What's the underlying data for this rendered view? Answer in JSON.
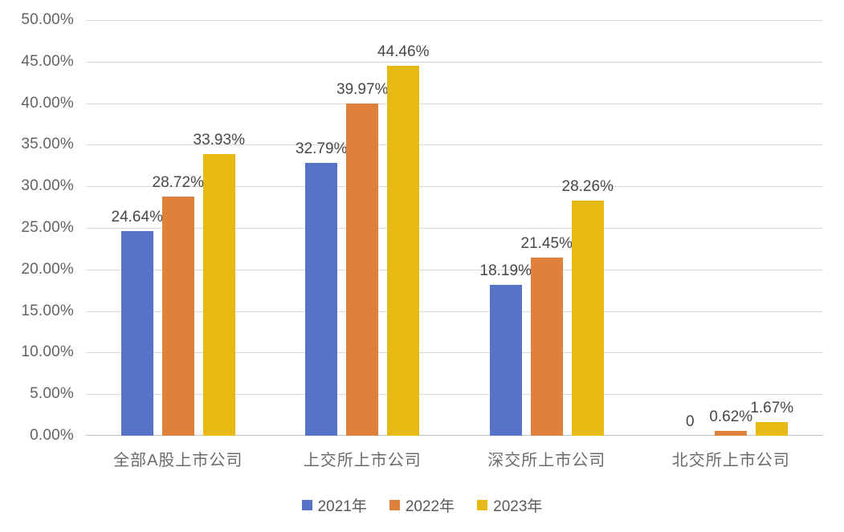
{
  "figure": {
    "background": "#FFFFFF"
  },
  "colors": {
    "gridline": "#D9D9D9",
    "axis_line": "#C3C3C3",
    "tick_text": "#636363",
    "label_text": "#474747",
    "category_text": "#6B6B6B",
    "legend_text": "#595959"
  },
  "chart_data": {
    "type": "bar",
    "title": "",
    "xlabel": "",
    "ylabel": "",
    "grid": true,
    "legend_position": "bottom",
    "ylim": [
      0,
      50
    ],
    "ytick_step": 5,
    "ytick_labels": [
      "0.00%",
      "5.00%",
      "10.00%",
      "15.00%",
      "20.00%",
      "25.00%",
      "30.00%",
      "35.00%",
      "40.00%",
      "45.00%",
      "50.00%"
    ],
    "categories": [
      "全部A股上市公司",
      "上交所上市公司",
      "深交所上市公司",
      "北交所上市公司"
    ],
    "series": [
      {
        "name": "2021年",
        "color": "#5674C7",
        "values": [
          24.64,
          32.79,
          18.19,
          0
        ],
        "labels": [
          "24.64%",
          "32.79%",
          "18.19%",
          "0"
        ]
      },
      {
        "name": "2022年",
        "color": "#E0813B",
        "values": [
          28.72,
          39.97,
          21.45,
          0.62
        ],
        "labels": [
          "28.72%",
          "39.97%",
          "21.45%",
          "0.62%"
        ]
      },
      {
        "name": "2023年",
        "color": "#E6BA12",
        "values": [
          33.93,
          44.46,
          28.26,
          1.67
        ],
        "labels": [
          "33.93%",
          "44.46%",
          "28.26%",
          "1.67%"
        ]
      }
    ]
  }
}
